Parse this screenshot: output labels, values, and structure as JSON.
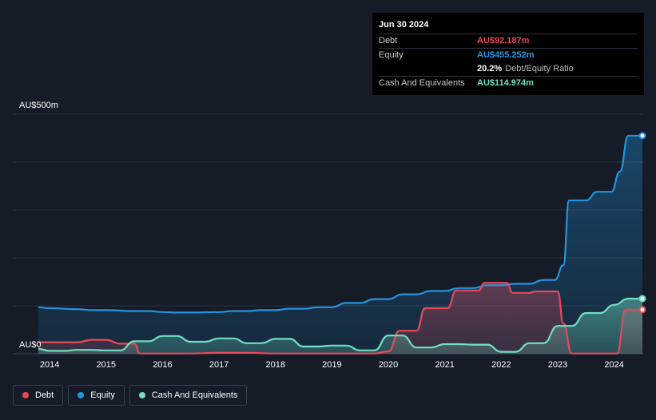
{
  "chart_data": {
    "type": "area",
    "ytop_label": "AU$500m",
    "yzero_label": "AU$0",
    "ylim": [
      0,
      500
    ],
    "xlim": [
      2013.8,
      2024.5
    ],
    "x_ticks": [
      2014,
      2015,
      2016,
      2017,
      2018,
      2019,
      2020,
      2021,
      2022,
      2023,
      2024
    ],
    "x_tick_labels": [
      "2014",
      "2015",
      "2016",
      "2017",
      "2018",
      "2019",
      "2020",
      "2021",
      "2022",
      "2023",
      "2024"
    ],
    "grid": true,
    "legend_position": "bottom-left",
    "series": [
      {
        "name": "Debt",
        "color": "#e64a5a",
        "x": [
          2013.8,
          2014.0,
          2014.5,
          2014.75,
          2015.0,
          2015.25,
          2015.5,
          2015.6,
          2015.75,
          2016.0,
          2016.5,
          2017.0,
          2017.5,
          2018.0,
          2018.5,
          2019.0,
          2019.5,
          2019.75,
          2020.0,
          2020.2,
          2020.5,
          2020.65,
          2020.9,
          2021.05,
          2021.2,
          2021.4,
          2021.6,
          2021.7,
          2022.0,
          2022.1,
          2022.2,
          2022.5,
          2022.6,
          2022.95,
          2023.0,
          2023.1,
          2023.25,
          2023.5,
          2024.0,
          2024.05,
          2024.2,
          2024.5
        ],
        "values": [
          24,
          24,
          24,
          29,
          29,
          21,
          21,
          0.5,
          0.5,
          0.5,
          0.5,
          2,
          2,
          0.5,
          0.5,
          0.5,
          0.5,
          0.5,
          5,
          48,
          48,
          95,
          95,
          95,
          132,
          132,
          132,
          148,
          148,
          148,
          127,
          127,
          130,
          130,
          130,
          63,
          0.5,
          0.5,
          0.5,
          0.5,
          92,
          92
        ]
      },
      {
        "name": "Equity",
        "color": "#2394df",
        "x": [
          2013.8,
          2014.0,
          2014.5,
          2014.75,
          2015.0,
          2015.5,
          2015.75,
          2016.0,
          2016.25,
          2016.5,
          2017.0,
          2017.25,
          2017.5,
          2017.75,
          2018.0,
          2018.25,
          2018.5,
          2018.75,
          2019.0,
          2019.25,
          2019.5,
          2019.75,
          2020.0,
          2020.25,
          2020.5,
          2020.75,
          2021.0,
          2021.25,
          2021.5,
          2021.75,
          2022.0,
          2022.25,
          2022.5,
          2022.75,
          2022.95,
          2023.1,
          2023.2,
          2023.5,
          2023.7,
          2023.95,
          2024.1,
          2024.25,
          2024.5
        ],
        "values": [
          97,
          95,
          93,
          91,
          91,
          89,
          89,
          87,
          86,
          86,
          87,
          89,
          89,
          91,
          91,
          94,
          94,
          97,
          97,
          106,
          106,
          114,
          114,
          124,
          124,
          131,
          131,
          137,
          137,
          143,
          143,
          146,
          146,
          154,
          154,
          185,
          320,
          320,
          338,
          338,
          380,
          455,
          455
        ]
      },
      {
        "name": "Cash And Equivalents",
        "color": "#6fe0c4",
        "x": [
          2013.8,
          2014.0,
          2014.25,
          2014.5,
          2014.75,
          2015.0,
          2015.25,
          2015.5,
          2015.75,
          2016.0,
          2016.25,
          2016.5,
          2016.75,
          2017.0,
          2017.25,
          2017.5,
          2017.75,
          2018.0,
          2018.25,
          2018.5,
          2018.75,
          2019.0,
          2019.25,
          2019.5,
          2019.75,
          2020.0,
          2020.25,
          2020.5,
          2020.75,
          2021.0,
          2021.25,
          2021.5,
          2021.75,
          2022.0,
          2022.25,
          2022.5,
          2022.75,
          2023.0,
          2023.25,
          2023.5,
          2023.75,
          2024.0,
          2024.25,
          2024.5
        ],
        "values": [
          10,
          6,
          6,
          8,
          8,
          7,
          7,
          26,
          26,
          37,
          37,
          25,
          25,
          32,
          32,
          22,
          22,
          31,
          31,
          15,
          15,
          17,
          17,
          7,
          7,
          38,
          38,
          13,
          13,
          20,
          20,
          19,
          19,
          4,
          4,
          22,
          22,
          58,
          58,
          85,
          85,
          102,
          115,
          115
        ]
      }
    ]
  },
  "tooltip": {
    "date": "Jun 30 2024",
    "rows": [
      {
        "label": "Debt",
        "value": "AU$92.187m",
        "color": "#e64a5a",
        "suffix": ""
      },
      {
        "label": "Equity",
        "value": "AU$455.252m",
        "color": "#2394df",
        "suffix": ""
      },
      {
        "label": "",
        "value": "20.2%",
        "color": "#ffffff",
        "suffix": "Debt/Equity Ratio"
      },
      {
        "label": "Cash And Equivalents",
        "value": "AU$114.974m",
        "color": "#6fe0c4",
        "suffix": ""
      }
    ]
  },
  "legend": [
    {
      "label": "Debt",
      "color": "#e64a5a"
    },
    {
      "label": "Equity",
      "color": "#2394df"
    },
    {
      "label": "Cash And Equivalents",
      "color": "#6fe0c4"
    }
  ]
}
